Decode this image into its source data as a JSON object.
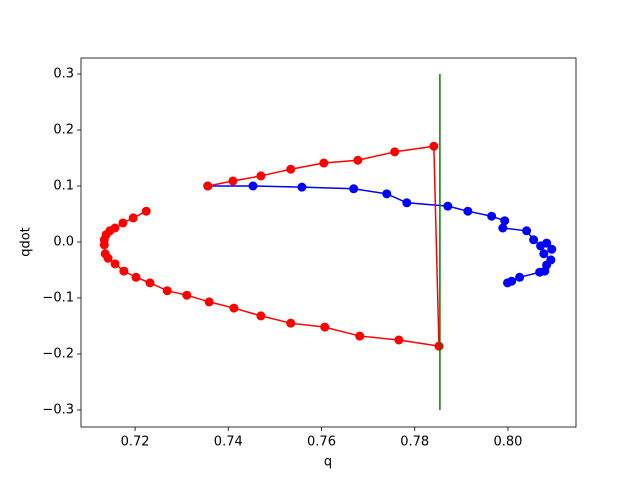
{
  "chart_data": {
    "type": "line",
    "xlabel": "q",
    "ylabel": "qdot",
    "xlim": [
      0.7084,
      0.8146
    ],
    "ylim": [
      -0.3304,
      0.3286
    ],
    "xticks": [
      0.72,
      0.74,
      0.76,
      0.78,
      {
        "value": 0.8,
        "label": "0.80"
      }
    ],
    "yticks": [
      {
        "value": -0.3,
        "label": "−0.3"
      },
      {
        "value": -0.2,
        "label": "−0.2"
      },
      {
        "value": -0.1,
        "label": "−0.1"
      },
      {
        "value": 0,
        "label": "0.0"
      },
      0.1,
      0.2,
      0.3
    ],
    "series": [
      {
        "color": "#0000ff",
        "marker": "o",
        "x": [
          0.7356,
          0.7453,
          0.7558,
          0.7669,
          0.774,
          0.7783,
          0.7871,
          0.7914,
          0.7965,
          0.7993,
          0.7989,
          0.804,
          0.8055,
          0.807,
          0.8083,
          0.8094,
          0.8077,
          0.8092,
          0.8083,
          0.8079,
          0.8068,
          0.8025,
          0.8008,
          0.7999
        ],
        "values": [
          0.1,
          0.1,
          0.098,
          0.095,
          0.086,
          0.07,
          0.064,
          0.055,
          0.046,
          0.038,
          0.025,
          0.02,
          0.004,
          -0.007,
          -0.002,
          -0.013,
          -0.021,
          -0.032,
          -0.041,
          -0.052,
          -0.054,
          -0.063,
          -0.07,
          -0.073
        ]
      },
      {
        "color": "#ff0000",
        "marker": "o",
        "x": [
          0.7356,
          0.741,
          0.747,
          0.7534,
          0.7605,
          0.7678,
          0.7757,
          0.7841,
          0.7852,
          0.7766,
          0.7682,
          0.7607,
          0.7534,
          0.747,
          0.7412,
          0.7359,
          0.7311,
          0.7269,
          0.7232,
          0.7202,
          0.7176,
          0.7157,
          0.7142,
          0.7136,
          0.7134,
          0.7134,
          0.7138,
          0.7146,
          0.7157,
          0.7174,
          0.7196,
          0.7224
        ],
        "values": [
          0.1,
          0.109,
          0.118,
          0.13,
          0.141,
          0.146,
          0.161,
          0.171,
          -0.186,
          -0.175,
          -0.168,
          -0.152,
          -0.145,
          -0.132,
          -0.118,
          -0.107,
          -0.095,
          -0.087,
          -0.073,
          -0.063,
          -0.052,
          -0.039,
          -0.029,
          -0.021,
          -0.005,
          0.004,
          0.013,
          0.02,
          0.025,
          0.034,
          0.043,
          0.055
        ]
      },
      {
        "color": "#008000",
        "marker": "none",
        "x": [
          0.7854,
          0.7854
        ],
        "values": [
          -0.3,
          0.3
        ]
      }
    ]
  }
}
